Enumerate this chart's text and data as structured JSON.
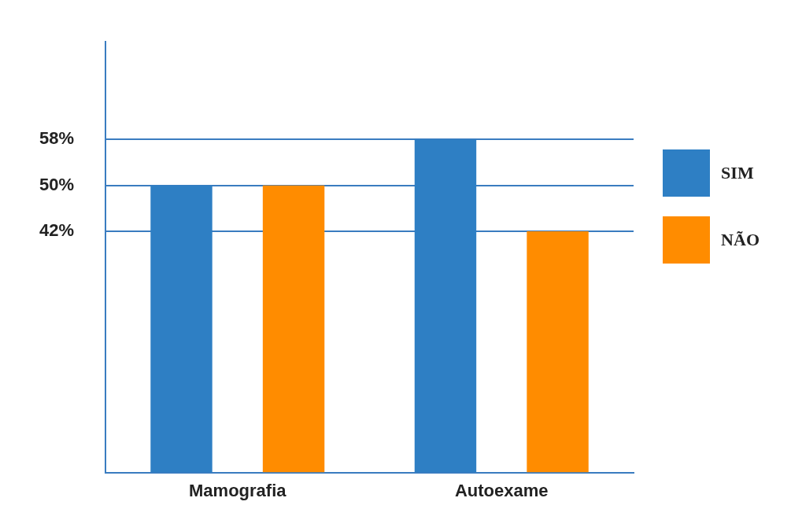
{
  "chart_data": {
    "type": "bar",
    "categories": [
      "Mamografia",
      "Autoexame"
    ],
    "series": [
      {
        "name": "SIM",
        "color": "#2e7fc4",
        "values": [
          50,
          58
        ]
      },
      {
        "name": "NÃO",
        "color": "#ff8c00",
        "values": [
          50,
          42
        ]
      }
    ],
    "ylim": [
      0,
      75
    ],
    "yticks": [
      {
        "value": 42,
        "label": "42%"
      },
      {
        "value": 50,
        "label": "50%"
      },
      {
        "value": 58,
        "label": "58%"
      }
    ],
    "grid": "y",
    "legend": "right"
  }
}
